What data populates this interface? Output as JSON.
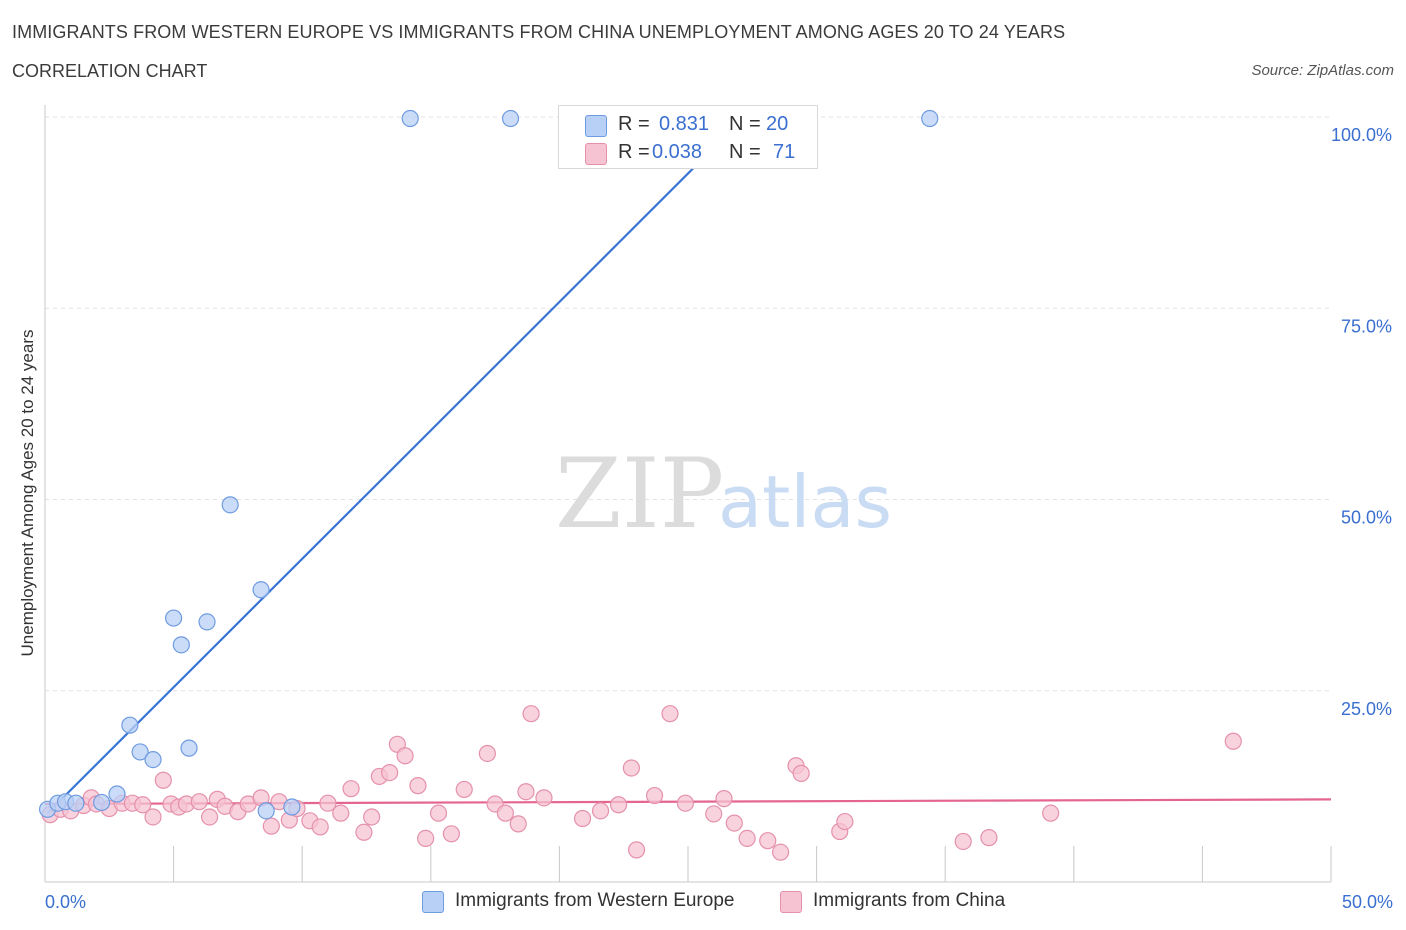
{
  "header": {
    "title": "IMMIGRANTS FROM WESTERN EUROPE VS IMMIGRANTS FROM CHINA UNEMPLOYMENT AMONG AGES 20 TO 24 YEARS",
    "subtitle": "CORRELATION CHART",
    "source": "Source: ZipAtlas.com"
  },
  "watermark": {
    "zip": "ZIP",
    "atlas": "atlas"
  },
  "legend_top": {
    "rows": [
      {
        "r_label": "R =",
        "r_value": "0.831",
        "n_label": "N =",
        "n_value": "20"
      },
      {
        "r_label": "R =",
        "r_value": "0.038",
        "n_label": "N =",
        "n_value": "71"
      }
    ]
  },
  "chart_data": {
    "type": "scatter",
    "title": "IMMIGRANTS FROM WESTERN EUROPE VS IMMIGRANTS FROM CHINA UNEMPLOYMENT AMONG AGES 20 TO 24 YEARS",
    "xlabel": "",
    "ylabel": "Unemployment Among Ages 20 to 24 years",
    "xlim": [
      0,
      50
    ],
    "ylim": [
      0,
      100
    ],
    "x_tick_labels": [
      "0.0%",
      "50.0%"
    ],
    "y_tick_labels": [
      "25.0%",
      "50.0%",
      "75.0%",
      "100.0%"
    ],
    "y_ticks": [
      25,
      50,
      75,
      100
    ],
    "grid": true,
    "legend_position": "bottom",
    "colors": {
      "blue_fill": "#b8d0f5",
      "blue_stroke": "#6f9be0",
      "blue_line": "#3a74d4",
      "pink_fill": "#f6c3d2",
      "pink_stroke": "#e591ac",
      "pink_line": "#e46690",
      "tick_label": "#3a6fd0"
    },
    "series": [
      {
        "name": "Immigrants from Western Europe",
        "color": "#6f9be0",
        "points": [
          [
            0.1,
            9.5
          ],
          [
            0.5,
            10.3
          ],
          [
            0.8,
            10.5
          ],
          [
            1.2,
            10.3
          ],
          [
            2.2,
            10.4
          ],
          [
            2.8,
            11.5
          ],
          [
            3.3,
            20.5
          ],
          [
            3.7,
            17.0
          ],
          [
            4.2,
            16.0
          ],
          [
            5.0,
            34.5
          ],
          [
            5.3,
            31.0
          ],
          [
            5.6,
            17.5
          ],
          [
            6.3,
            34.0
          ],
          [
            7.2,
            49.3
          ],
          [
            8.4,
            38.2
          ],
          [
            8.6,
            9.3
          ],
          [
            9.6,
            9.8
          ],
          [
            14.2,
            99.8
          ],
          [
            18.1,
            99.8
          ],
          [
            34.4,
            99.8
          ]
        ],
        "trend": [
          [
            0.1,
            9.0
          ],
          [
            27.2,
            100
          ]
        ]
      },
      {
        "name": "Immigrants from China",
        "color": "#e591ac",
        "points": [
          [
            0.2,
            8.8
          ],
          [
            0.6,
            9.5
          ],
          [
            1.0,
            9.3
          ],
          [
            1.5,
            10.0
          ],
          [
            1.8,
            11.0
          ],
          [
            2.0,
            10.2
          ],
          [
            2.5,
            9.6
          ],
          [
            3.0,
            10.3
          ],
          [
            3.4,
            10.3
          ],
          [
            3.8,
            10.1
          ],
          [
            4.2,
            8.5
          ],
          [
            4.6,
            13.3
          ],
          [
            4.9,
            10.2
          ],
          [
            5.2,
            9.8
          ],
          [
            5.5,
            10.2
          ],
          [
            6.0,
            10.5
          ],
          [
            6.4,
            8.5
          ],
          [
            6.7,
            10.8
          ],
          [
            7.0,
            9.9
          ],
          [
            7.5,
            9.2
          ],
          [
            7.9,
            10.2
          ],
          [
            8.4,
            11.0
          ],
          [
            8.8,
            7.3
          ],
          [
            9.1,
            10.5
          ],
          [
            9.5,
            8.1
          ],
          [
            9.8,
            9.6
          ],
          [
            10.3,
            8.0
          ],
          [
            10.7,
            7.2
          ],
          [
            11.0,
            10.3
          ],
          [
            11.5,
            9.0
          ],
          [
            11.9,
            12.2
          ],
          [
            12.4,
            6.5
          ],
          [
            12.7,
            8.5
          ],
          [
            13.0,
            13.8
          ],
          [
            13.4,
            14.3
          ],
          [
            13.7,
            18.0
          ],
          [
            14.0,
            16.5
          ],
          [
            14.5,
            12.6
          ],
          [
            14.8,
            5.7
          ],
          [
            15.3,
            9.0
          ],
          [
            15.8,
            6.3
          ],
          [
            16.3,
            12.1
          ],
          [
            17.2,
            16.8
          ],
          [
            17.5,
            10.2
          ],
          [
            17.9,
            9.0
          ],
          [
            18.4,
            7.6
          ],
          [
            18.7,
            11.8
          ],
          [
            18.9,
            22.0
          ],
          [
            19.4,
            11.0
          ],
          [
            20.9,
            8.3
          ],
          [
            21.6,
            9.3
          ],
          [
            22.3,
            10.1
          ],
          [
            22.8,
            14.9
          ],
          [
            23.0,
            4.2
          ],
          [
            23.7,
            11.3
          ],
          [
            24.3,
            22.0
          ],
          [
            24.9,
            10.3
          ],
          [
            26.0,
            8.9
          ],
          [
            26.4,
            10.9
          ],
          [
            26.8,
            7.7
          ],
          [
            27.3,
            5.7
          ],
          [
            28.1,
            5.4
          ],
          [
            28.6,
            3.9
          ],
          [
            29.2,
            15.2
          ],
          [
            29.4,
            14.2
          ],
          [
            30.9,
            6.6
          ],
          [
            31.1,
            7.9
          ],
          [
            35.7,
            5.3
          ],
          [
            36.7,
            5.8
          ],
          [
            39.1,
            9.0
          ],
          [
            46.2,
            18.4
          ]
        ],
        "trend": [
          [
            0.0,
            10.2
          ],
          [
            50.0,
            10.8
          ]
        ]
      }
    ]
  },
  "legend_bottom": {
    "items": [
      {
        "label": "Immigrants from Western Europe"
      },
      {
        "label": "Immigrants from China"
      }
    ]
  }
}
